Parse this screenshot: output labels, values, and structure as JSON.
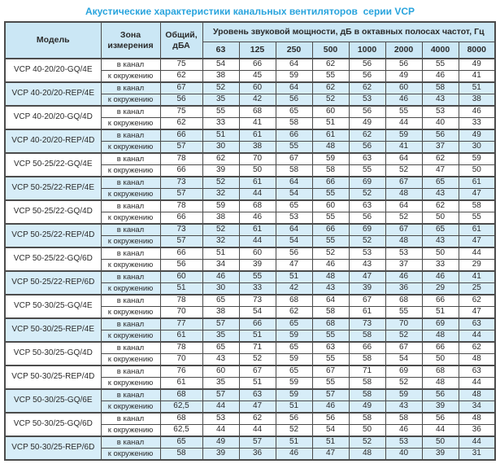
{
  "title": "Акустические характеристики канальных вентиляторов  серии VCP",
  "colors": {
    "title_blue": "#29a4dd",
    "header_bg": "#cbe7f5",
    "shaded_row_bg": "#d7edf8",
    "border": "#4c4c4c",
    "text": "#2b2b2b"
  },
  "table": {
    "headers": {
      "model": "Модель",
      "zone": "Зона измерения",
      "total": "Общий, дБА",
      "spectrum": "Уровень звуковой мощности, дБ в октавных полосах частот, Гц",
      "frequencies": [
        "63",
        "125",
        "250",
        "500",
        "1000",
        "2000",
        "4000",
        "8000"
      ]
    },
    "zone_labels": [
      "в канал",
      "к окружению"
    ],
    "groups": [
      {
        "model": "VCP 40-20/20-GQ/4E",
        "shaded": false,
        "rows": [
          {
            "zone": "в канал",
            "total": "75",
            "bands": [
              "54",
              "66",
              "64",
              "62",
              "56",
              "56",
              "55",
              "49"
            ]
          },
          {
            "zone": "к окружению",
            "total": "62",
            "bands": [
              "38",
              "45",
              "59",
              "55",
              "56",
              "49",
              "46",
              "41"
            ]
          }
        ]
      },
      {
        "model": "VCP 40-20/20-REP/4E",
        "shaded": true,
        "rows": [
          {
            "zone": "в канал",
            "total": "67",
            "bands": [
              "52",
              "60",
              "64",
              "62",
              "62",
              "60",
              "58",
              "51"
            ]
          },
          {
            "zone": "к окружению",
            "total": "56",
            "bands": [
              "35",
              "42",
              "56",
              "52",
              "53",
              "46",
              "43",
              "38"
            ]
          }
        ]
      },
      {
        "model": "VCP 40-20/20-GQ/4D",
        "shaded": false,
        "rows": [
          {
            "zone": "в канал",
            "total": "75",
            "bands": [
              "55",
              "68",
              "65",
              "60",
              "56",
              "55",
              "53",
              "46"
            ]
          },
          {
            "zone": "к окружению",
            "total": "62",
            "bands": [
              "33",
              "41",
              "58",
              "51",
              "49",
              "44",
              "40",
              "33"
            ]
          }
        ]
      },
      {
        "model": "VCP 40-20/20-REP/4D",
        "shaded": true,
        "rows": [
          {
            "zone": "в канал",
            "total": "66",
            "bands": [
              "51",
              "61",
              "66",
              "61",
              "62",
              "59",
              "56",
              "49"
            ]
          },
          {
            "zone": "к окружению",
            "total": "57",
            "bands": [
              "30",
              "38",
              "55",
              "48",
              "56",
              "41",
              "37",
              "30"
            ]
          }
        ]
      },
      {
        "model": "VCP 50-25/22-GQ/4E",
        "shaded": false,
        "rows": [
          {
            "zone": "в канал",
            "total": "78",
            "bands": [
              "62",
              "70",
              "67",
              "59",
              "63",
              "64",
              "62",
              "59"
            ]
          },
          {
            "zone": "к окружению",
            "total": "66",
            "bands": [
              "39",
              "50",
              "58",
              "58",
              "55",
              "52",
              "47",
              "50"
            ]
          }
        ]
      },
      {
        "model": "VCP 50-25/22-REP/4E",
        "shaded": true,
        "rows": [
          {
            "zone": "в канал",
            "total": "73",
            "bands": [
              "52",
              "61",
              "64",
              "66",
              "69",
              "67",
              "65",
              "61"
            ]
          },
          {
            "zone": "к окружению",
            "total": "57",
            "bands": [
              "32",
              "44",
              "54",
              "55",
              "52",
              "48",
              "43",
              "47"
            ]
          }
        ]
      },
      {
        "model": "VCP 50-25/22-GQ/4D",
        "shaded": false,
        "rows": [
          {
            "zone": "в канал",
            "total": "78",
            "bands": [
              "59",
              "68",
              "65",
              "60",
              "63",
              "64",
              "62",
              "58"
            ]
          },
          {
            "zone": "к окружению",
            "total": "66",
            "bands": [
              "38",
              "46",
              "53",
              "55",
              "56",
              "52",
              "50",
              "55"
            ]
          }
        ]
      },
      {
        "model": "VCP 50-25/22-REP/4D",
        "shaded": true,
        "rows": [
          {
            "zone": "в канал",
            "total": "73",
            "bands": [
              "52",
              "61",
              "64",
              "66",
              "69",
              "67",
              "65",
              "61"
            ]
          },
          {
            "zone": "к окружению",
            "total": "57",
            "bands": [
              "32",
              "44",
              "54",
              "55",
              "52",
              "48",
              "43",
              "47"
            ]
          }
        ]
      },
      {
        "model": "VCP 50-25/22-GQ/6D",
        "shaded": false,
        "rows": [
          {
            "zone": "в канал",
            "total": "66",
            "bands": [
              "51",
              "60",
              "56",
              "52",
              "53",
              "53",
              "50",
              "44"
            ]
          },
          {
            "zone": "к окружению",
            "total": "56",
            "bands": [
              "34",
              "39",
              "47",
              "46",
              "43",
              "37",
              "33",
              "29"
            ]
          }
        ]
      },
      {
        "model": "VCP 50-25/22-REP/6D",
        "shaded": true,
        "rows": [
          {
            "zone": "в канал",
            "total": "60",
            "bands": [
              "46",
              "55",
              "51",
              "48",
              "47",
              "46",
              "46",
              "41"
            ]
          },
          {
            "zone": "к окружению",
            "total": "51",
            "bands": [
              "30",
              "33",
              "42",
              "43",
              "39",
              "36",
              "29",
              "25"
            ]
          }
        ]
      },
      {
        "model": "VCP 50-30/25-GQ/4E",
        "shaded": false,
        "rows": [
          {
            "zone": "в канал",
            "total": "78",
            "bands": [
              "65",
              "73",
              "68",
              "64",
              "67",
              "68",
              "66",
              "62"
            ]
          },
          {
            "zone": "к окружению",
            "total": "70",
            "bands": [
              "38",
              "54",
              "62",
              "58",
              "61",
              "55",
              "51",
              "47"
            ]
          }
        ]
      },
      {
        "model": "VCP 50-30/25-REP/4E",
        "shaded": true,
        "rows": [
          {
            "zone": "в канал",
            "total": "77",
            "bands": [
              "57",
              "66",
              "65",
              "68",
              "73",
              "70",
              "69",
              "63"
            ]
          },
          {
            "zone": "к окружению",
            "total": "61",
            "bands": [
              "35",
              "51",
              "59",
              "55",
              "58",
              "52",
              "48",
              "44"
            ]
          }
        ]
      },
      {
        "model": "VCP 50-30/25-GQ/4D",
        "shaded": false,
        "rows": [
          {
            "zone": "в канал",
            "total": "78",
            "bands": [
              "65",
              "71",
              "65",
              "63",
              "66",
              "67",
              "66",
              "62"
            ]
          },
          {
            "zone": "к окружению",
            "total": "70",
            "bands": [
              "43",
              "52",
              "59",
              "55",
              "58",
              "54",
              "50",
              "48"
            ]
          }
        ]
      },
      {
        "model": "VCP 50-30/25-REP/4D",
        "shaded": false,
        "rows": [
          {
            "zone": "в канал",
            "total": "76",
            "bands": [
              "60",
              "67",
              "65",
              "67",
              "71",
              "69",
              "68",
              "63"
            ]
          },
          {
            "zone": "к окружению",
            "total": "61",
            "bands": [
              "35",
              "51",
              "59",
              "55",
              "58",
              "52",
              "48",
              "44"
            ]
          }
        ]
      },
      {
        "model": "VCP 50-30/25-GQ/6E",
        "shaded": true,
        "rows": [
          {
            "zone": "в канал",
            "total": "68",
            "bands": [
              "57",
              "63",
              "59",
              "57",
              "58",
              "59",
              "56",
              "48"
            ]
          },
          {
            "zone": "к окружению",
            "total": "62,5",
            "bands": [
              "44",
              "47",
              "51",
              "46",
              "49",
              "43",
              "39",
              "34"
            ]
          }
        ]
      },
      {
        "model": "VCP 50-30/25-GQ/6D",
        "shaded": false,
        "rows": [
          {
            "zone": "в канал",
            "total": "68",
            "bands": [
              "53",
              "62",
              "56",
              "56",
              "58",
              "58",
              "56",
              "48"
            ]
          },
          {
            "zone": "к окружению",
            "total": "62,5",
            "bands": [
              "44",
              "44",
              "52",
              "54",
              "50",
              "46",
              "44",
              "36"
            ]
          }
        ]
      },
      {
        "model": "VCP 50-30/25-REP/6D",
        "shaded": true,
        "rows": [
          {
            "zone": "в канал",
            "total": "65",
            "bands": [
              "49",
              "57",
              "51",
              "51",
              "52",
              "53",
              "50",
              "44"
            ]
          },
          {
            "zone": "к окружению",
            "total": "58",
            "bands": [
              "39",
              "36",
              "46",
              "47",
              "48",
              "40",
              "39",
              "31"
            ]
          }
        ]
      }
    ]
  }
}
